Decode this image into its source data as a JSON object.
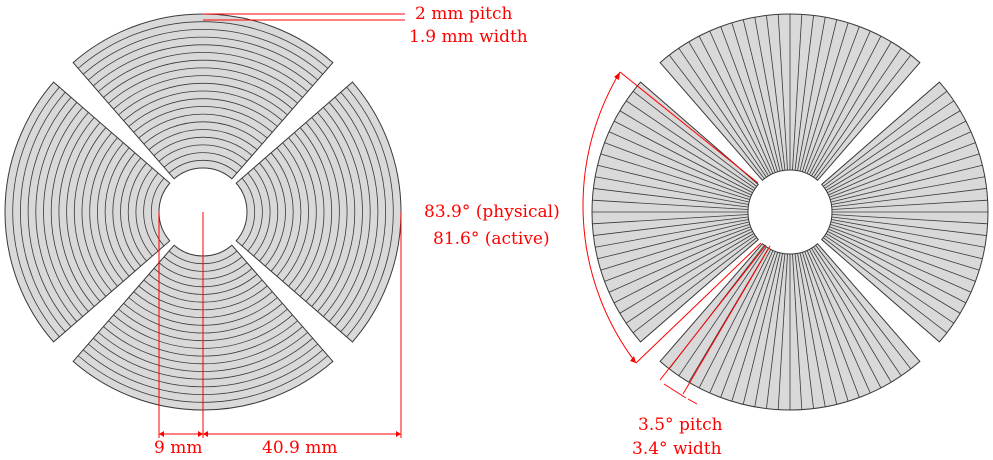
{
  "colors": {
    "sector_fill": "#d9d9d9",
    "sector_stroke": "#3a3a3a",
    "annotation": "#ff0000",
    "background": "#ffffff"
  },
  "left_detector": {
    "strip_geometry": "concentric rings",
    "sector_count": 4,
    "ring_count": 20,
    "annotations": {
      "pitch_label": "2 mm pitch",
      "width_label": "1.9 mm width",
      "inner_radius_label": "9 mm",
      "active_length_label": "40.9 mm"
    }
  },
  "right_detector": {
    "strip_geometry": "radial strips",
    "sector_count": 4,
    "strips_per_sector": 24,
    "annotations": {
      "physical_angle_label": "83.9° (physical)",
      "active_angle_label": "81.6° (active)",
      "pitch_label": "3.5° pitch",
      "width_label": "3.4° width"
    }
  }
}
